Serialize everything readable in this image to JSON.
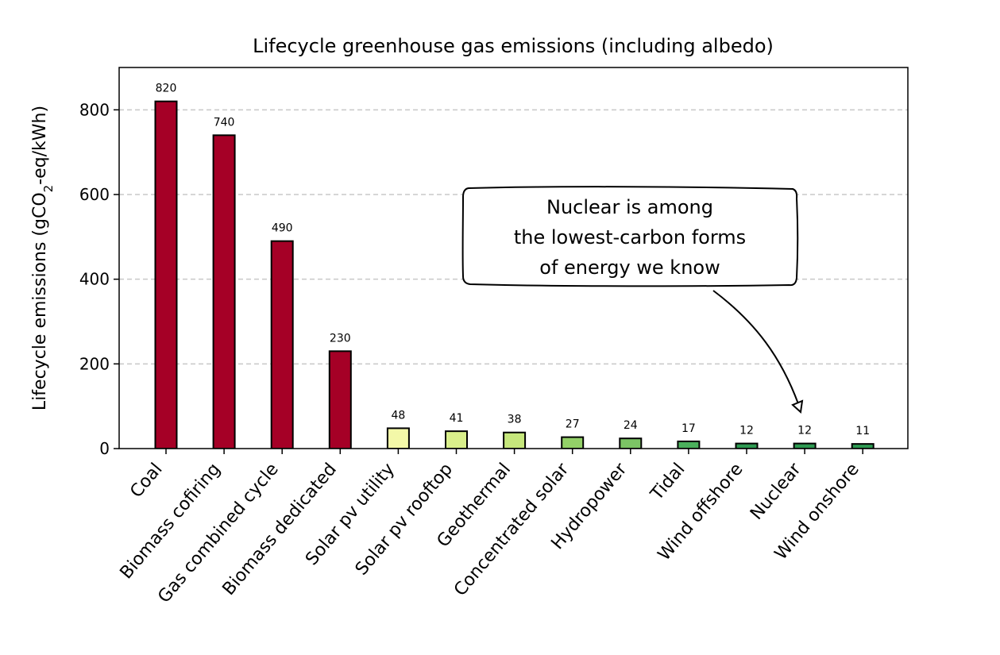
{
  "chart_data": {
    "type": "bar",
    "title": "Lifecycle greenhouse gas emissions  (including albedo)",
    "xlabel": "",
    "ylabel": {
      "prefix": "Lifecycle emissions (gCO",
      "subscript": "2",
      "suffix": "-eq/kWh)"
    },
    "ylim": [
      0,
      900
    ],
    "yticks": [
      0,
      200,
      400,
      600,
      800
    ],
    "grid": "horizontal dashed",
    "categories": [
      "Coal",
      "Biomass cofiring",
      "Gas combined cycle",
      "Biomass dedicated",
      "Solar pv utility",
      "Solar pv rooftop",
      "Geothermal",
      "Concentrated solar",
      "Hydropower",
      "Tidal",
      "Wind offshore",
      "Nuclear",
      "Wind onshore"
    ],
    "values": [
      820,
      740,
      490,
      230,
      48,
      41,
      38,
      27,
      24,
      17,
      12,
      12,
      11
    ],
    "colors": [
      "#a50026",
      "#a50026",
      "#a50026",
      "#a50026",
      "#f3f8a8",
      "#d9ef8b",
      "#c6e77c",
      "#93d068",
      "#7cc465",
      "#4bb05c",
      "#2e9a52",
      "#2e9a52",
      "#2e9a52"
    ],
    "annotation": {
      "lines": [
        "Nuclear is among",
        "the lowest-carbon forms",
        "of energy we know"
      ],
      "target_category": "Nuclear"
    }
  }
}
